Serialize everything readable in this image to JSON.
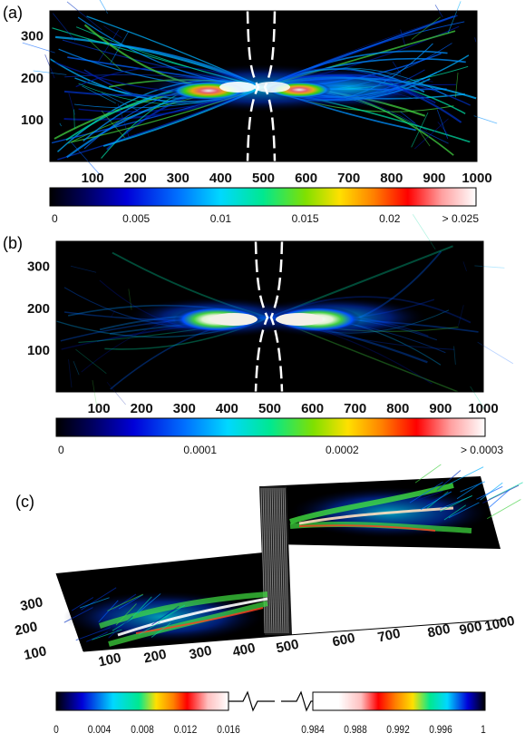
{
  "panels": {
    "a": {
      "label": "(a)"
    },
    "b": {
      "label": "(b)"
    },
    "c": {
      "label": "(c)"
    }
  },
  "chart_data": [
    {
      "type": "heatmap",
      "panel": "(a)",
      "x_ticks": [
        "100",
        "200",
        "300",
        "400",
        "500",
        "600",
        "700",
        "800",
        "900",
        "1000"
      ],
      "y_ticks": [
        "100",
        "200",
        "300"
      ],
      "xlim": [
        0,
        1000
      ],
      "ylim": [
        0,
        360
      ],
      "colorbar": {
        "ticks": [
          "0",
          "0.005",
          "0.01",
          "0.015",
          "0.02",
          "> 0.025"
        ],
        "range": [
          0,
          0.025
        ]
      },
      "annotation": "dashed white boundary lines near x=460 and x=530"
    },
    {
      "type": "heatmap",
      "panel": "(b)",
      "x_ticks": [
        "100",
        "200",
        "300",
        "400",
        "500",
        "600",
        "700",
        "800",
        "900",
        "1000"
      ],
      "y_ticks": [
        "100",
        "200",
        "300"
      ],
      "xlim": [
        0,
        1000
      ],
      "ylim": [
        0,
        360
      ],
      "colorbar": {
        "ticks": [
          "0",
          "0.0001",
          "0.0002",
          "> 0.0003"
        ],
        "range": [
          0,
          0.0003
        ]
      }
    },
    {
      "type": "heatmap",
      "panel": "(c)",
      "x_ticks": [
        "100",
        "200",
        "300",
        "400",
        "500",
        "600",
        "700",
        "800",
        "900",
        "1000"
      ],
      "y_ticks": [
        "100",
        "200",
        "300"
      ],
      "colorbar": {
        "left_ticks": [
          "0",
          "0.004",
          "0.008",
          "0.012",
          "0.016"
        ],
        "right_ticks": [
          "0.984",
          "0.988",
          "0.992",
          "0.996",
          "1"
        ]
      }
    }
  ],
  "colors": {
    "colormap": [
      "#000000",
      "#00005a",
      "#0000d8",
      "#0070ff",
      "#00d8ff",
      "#00e890",
      "#80e000",
      "#ffe000",
      "#ff8000",
      "#ff0000",
      "#ffa0a0",
      "#ffffff"
    ]
  }
}
